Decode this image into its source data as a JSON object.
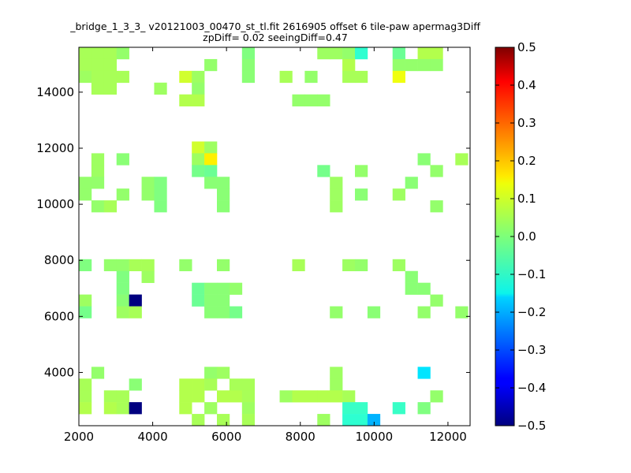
{
  "chart_data": {
    "type": "heatmap",
    "title_lines": [
      "_bridge_1_3_3_ v20121003_00470_st_tl.fit 2616905 offset 6 tile-paw apermag3Diff",
      "zpDiff= 0.02 seeingDiff=0.47"
    ],
    "xlabel": "",
    "ylabel": "",
    "xlim": [
      2000,
      12600
    ],
    "ylim": [
      2100,
      15600
    ],
    "xticks": [
      2000,
      4000,
      6000,
      8000,
      10000,
      12000
    ],
    "yticks": [
      4000,
      6000,
      8000,
      10000,
      12000,
      14000
    ],
    "cell_width": 340,
    "cell_height": 420,
    "colorbar": {
      "colormap": "jet",
      "range": [
        -0.5,
        0.5
      ],
      "ticks": [
        "0.5",
        "0.4",
        "0.3",
        "0.2",
        "0.1",
        "0.0",
        "−0.1",
        "−0.2",
        "−0.3",
        "−0.4",
        "−0.5"
      ]
    },
    "grid": false,
    "cells": [
      {
        "x": 2170,
        "y": 15390,
        "v": 0.04
      },
      {
        "x": 2510,
        "y": 15390,
        "v": 0.04
      },
      {
        "x": 2850,
        "y": 15390,
        "v": 0.04
      },
      {
        "x": 3190,
        "y": 15390,
        "v": 0.02
      },
      {
        "x": 6590,
        "y": 15390,
        "v": 0.0
      },
      {
        "x": 8630,
        "y": 15390,
        "v": 0.03
      },
      {
        "x": 8970,
        "y": 15390,
        "v": 0.03
      },
      {
        "x": 9310,
        "y": 15390,
        "v": 0.02
      },
      {
        "x": 9650,
        "y": 15390,
        "v": -0.08
      },
      {
        "x": 10670,
        "y": 15390,
        "v": -0.02
      },
      {
        "x": 11350,
        "y": 15390,
        "v": 0.05
      },
      {
        "x": 11690,
        "y": 15390,
        "v": 0.05
      },
      {
        "x": 2170,
        "y": 14970,
        "v": 0.04
      },
      {
        "x": 2510,
        "y": 14970,
        "v": 0.04
      },
      {
        "x": 2850,
        "y": 14970,
        "v": 0.04
      },
      {
        "x": 5570,
        "y": 14970,
        "v": 0.02
      },
      {
        "x": 6590,
        "y": 14970,
        "v": 0.01
      },
      {
        "x": 9310,
        "y": 14970,
        "v": 0.05
      },
      {
        "x": 10670,
        "y": 14970,
        "v": 0.02
      },
      {
        "x": 11010,
        "y": 14970,
        "v": 0.02
      },
      {
        "x": 11350,
        "y": 14970,
        "v": 0.02
      },
      {
        "x": 11690,
        "y": 14970,
        "v": 0.02
      },
      {
        "x": 2170,
        "y": 14550,
        "v": 0.03
      },
      {
        "x": 2510,
        "y": 14550,
        "v": 0.04
      },
      {
        "x": 2850,
        "y": 14550,
        "v": 0.04
      },
      {
        "x": 3190,
        "y": 14550,
        "v": 0.04
      },
      {
        "x": 4890,
        "y": 14550,
        "v": 0.08
      },
      {
        "x": 5230,
        "y": 14550,
        "v": 0.03
      },
      {
        "x": 6590,
        "y": 14550,
        "v": 0.01
      },
      {
        "x": 7610,
        "y": 14550,
        "v": 0.04
      },
      {
        "x": 8290,
        "y": 14550,
        "v": 0.02
      },
      {
        "x": 9310,
        "y": 14550,
        "v": 0.04
      },
      {
        "x": 9650,
        "y": 14550,
        "v": 0.04
      },
      {
        "x": 10670,
        "y": 14550,
        "v": 0.11
      },
      {
        "x": 2510,
        "y": 14130,
        "v": 0.04
      },
      {
        "x": 2850,
        "y": 14130,
        "v": 0.04
      },
      {
        "x": 4210,
        "y": 14130,
        "v": 0.03
      },
      {
        "x": 5230,
        "y": 14130,
        "v": 0.02
      },
      {
        "x": 4890,
        "y": 13710,
        "v": 0.05
      },
      {
        "x": 5230,
        "y": 13710,
        "v": 0.05
      },
      {
        "x": 7950,
        "y": 13710,
        "v": 0.02
      },
      {
        "x": 8290,
        "y": 13710,
        "v": 0.02
      },
      {
        "x": 8630,
        "y": 13710,
        "v": 0.02
      },
      {
        "x": 5230,
        "y": 12030,
        "v": 0.08
      },
      {
        "x": 5570,
        "y": 12030,
        "v": 0.03
      },
      {
        "x": 2510,
        "y": 11610,
        "v": 0.03
      },
      {
        "x": 3190,
        "y": 11610,
        "v": 0.01
      },
      {
        "x": 5230,
        "y": 11610,
        "v": 0.03
      },
      {
        "x": 5570,
        "y": 11610,
        "v": 0.14
      },
      {
        "x": 11350,
        "y": 11610,
        "v": 0.01
      },
      {
        "x": 12370,
        "y": 11610,
        "v": 0.04
      },
      {
        "x": 2510,
        "y": 11190,
        "v": 0.03
      },
      {
        "x": 5230,
        "y": 11190,
        "v": -0.01
      },
      {
        "x": 5570,
        "y": 11190,
        "v": -0.02
      },
      {
        "x": 8630,
        "y": 11190,
        "v": -0.01
      },
      {
        "x": 9650,
        "y": 11190,
        "v": 0.02
      },
      {
        "x": 11690,
        "y": 11190,
        "v": 0.02
      },
      {
        "x": 2170,
        "y": 10770,
        "v": 0.02
      },
      {
        "x": 2510,
        "y": 10770,
        "v": 0.02
      },
      {
        "x": 3870,
        "y": 10770,
        "v": 0.02
      },
      {
        "x": 4210,
        "y": 10770,
        "v": 0.0
      },
      {
        "x": 5570,
        "y": 10770,
        "v": 0.01
      },
      {
        "x": 5910,
        "y": 10770,
        "v": 0.01
      },
      {
        "x": 8970,
        "y": 10770,
        "v": 0.03
      },
      {
        "x": 11010,
        "y": 10770,
        "v": 0.01
      },
      {
        "x": 2170,
        "y": 10350,
        "v": 0.02
      },
      {
        "x": 3190,
        "y": 10350,
        "v": 0.02
      },
      {
        "x": 3870,
        "y": 10350,
        "v": 0.02
      },
      {
        "x": 4210,
        "y": 10350,
        "v": 0.0
      },
      {
        "x": 5910,
        "y": 10350,
        "v": 0.01
      },
      {
        "x": 8970,
        "y": 10350,
        "v": 0.03
      },
      {
        "x": 9650,
        "y": 10350,
        "v": 0.01
      },
      {
        "x": 10670,
        "y": 10350,
        "v": 0.03
      },
      {
        "x": 2510,
        "y": 9930,
        "v": 0.02
      },
      {
        "x": 2850,
        "y": 9930,
        "v": 0.04
      },
      {
        "x": 4210,
        "y": 9930,
        "v": 0.0
      },
      {
        "x": 5910,
        "y": 9930,
        "v": 0.01
      },
      {
        "x": 8970,
        "y": 9930,
        "v": 0.03
      },
      {
        "x": 11690,
        "y": 9930,
        "v": 0.02
      },
      {
        "x": 2170,
        "y": 7830,
        "v": 0.0
      },
      {
        "x": 2850,
        "y": 7830,
        "v": 0.02
      },
      {
        "x": 3190,
        "y": 7830,
        "v": 0.02
      },
      {
        "x": 3530,
        "y": 7830,
        "v": 0.04
      },
      {
        "x": 3870,
        "y": 7830,
        "v": 0.04
      },
      {
        "x": 4890,
        "y": 7830,
        "v": 0.02
      },
      {
        "x": 5910,
        "y": 7830,
        "v": 0.02
      },
      {
        "x": 7950,
        "y": 7830,
        "v": 0.04
      },
      {
        "x": 9310,
        "y": 7830,
        "v": 0.03
      },
      {
        "x": 9650,
        "y": 7830,
        "v": 0.02
      },
      {
        "x": 10670,
        "y": 7830,
        "v": 0.03
      },
      {
        "x": 3190,
        "y": 7410,
        "v": 0.0
      },
      {
        "x": 3870,
        "y": 7410,
        "v": 0.03
      },
      {
        "x": 11010,
        "y": 7410,
        "v": 0.01
      },
      {
        "x": 3190,
        "y": 6990,
        "v": 0.0
      },
      {
        "x": 5230,
        "y": 6990,
        "v": -0.02
      },
      {
        "x": 5570,
        "y": 6990,
        "v": 0.01
      },
      {
        "x": 5910,
        "y": 6990,
        "v": 0.01
      },
      {
        "x": 6250,
        "y": 6990,
        "v": 0.02
      },
      {
        "x": 11010,
        "y": 6990,
        "v": 0.01
      },
      {
        "x": 11350,
        "y": 6990,
        "v": 0.01
      },
      {
        "x": 2170,
        "y": 6570,
        "v": 0.03
      },
      {
        "x": 3190,
        "y": 6570,
        "v": 0.01
      },
      {
        "x": 3530,
        "y": 6570,
        "v": -0.5
      },
      {
        "x": 5230,
        "y": 6570,
        "v": -0.02
      },
      {
        "x": 5570,
        "y": 6570,
        "v": 0.01
      },
      {
        "x": 5910,
        "y": 6570,
        "v": 0.01
      },
      {
        "x": 11690,
        "y": 6570,
        "v": 0.02
      },
      {
        "x": 2170,
        "y": 6150,
        "v": -0.01
      },
      {
        "x": 3190,
        "y": 6150,
        "v": 0.03
      },
      {
        "x": 3530,
        "y": 6150,
        "v": 0.04
      },
      {
        "x": 5570,
        "y": 6150,
        "v": 0.01
      },
      {
        "x": 5910,
        "y": 6150,
        "v": 0.01
      },
      {
        "x": 6250,
        "y": 6150,
        "v": -0.01
      },
      {
        "x": 8970,
        "y": 6150,
        "v": 0.02
      },
      {
        "x": 9990,
        "y": 6150,
        "v": 0.01
      },
      {
        "x": 11350,
        "y": 6150,
        "v": 0.02
      },
      {
        "x": 12370,
        "y": 6150,
        "v": 0.02
      },
      {
        "x": 2510,
        "y": 3990,
        "v": 0.02
      },
      {
        "x": 5570,
        "y": 3990,
        "v": 0.02
      },
      {
        "x": 5910,
        "y": 3990,
        "v": 0.03
      },
      {
        "x": 8970,
        "y": 3990,
        "v": 0.03
      },
      {
        "x": 11350,
        "y": 3990,
        "v": -0.15
      },
      {
        "x": 2170,
        "y": 3570,
        "v": 0.04
      },
      {
        "x": 3530,
        "y": 3570,
        "v": 0.01
      },
      {
        "x": 4890,
        "y": 3570,
        "v": 0.05
      },
      {
        "x": 5230,
        "y": 3570,
        "v": 0.05
      },
      {
        "x": 5570,
        "y": 3570,
        "v": 0.04
      },
      {
        "x": 6250,
        "y": 3570,
        "v": 0.04
      },
      {
        "x": 6590,
        "y": 3570,
        "v": 0.04
      },
      {
        "x": 8970,
        "y": 3570,
        "v": 0.03
      },
      {
        "x": 2170,
        "y": 3150,
        "v": 0.04
      },
      {
        "x": 2850,
        "y": 3150,
        "v": 0.04
      },
      {
        "x": 3190,
        "y": 3150,
        "v": 0.04
      },
      {
        "x": 4890,
        "y": 3150,
        "v": 0.05
      },
      {
        "x": 5230,
        "y": 3150,
        "v": 0.05
      },
      {
        "x": 5910,
        "y": 3150,
        "v": 0.05
      },
      {
        "x": 6250,
        "y": 3150,
        "v": 0.05
      },
      {
        "x": 6590,
        "y": 3150,
        "v": 0.04
      },
      {
        "x": 7610,
        "y": 3150,
        "v": 0.03
      },
      {
        "x": 7950,
        "y": 3150,
        "v": 0.05
      },
      {
        "x": 8290,
        "y": 3150,
        "v": 0.05
      },
      {
        "x": 8630,
        "y": 3150,
        "v": 0.05
      },
      {
        "x": 8970,
        "y": 3150,
        "v": 0.05
      },
      {
        "x": 9310,
        "y": 3150,
        "v": 0.04
      },
      {
        "x": 11690,
        "y": 3150,
        "v": 0.02
      },
      {
        "x": 2170,
        "y": 2730,
        "v": 0.05
      },
      {
        "x": 2850,
        "y": 2730,
        "v": 0.05
      },
      {
        "x": 3190,
        "y": 2730,
        "v": 0.04
      },
      {
        "x": 3530,
        "y": 2730,
        "v": -0.5
      },
      {
        "x": 4890,
        "y": 2730,
        "v": 0.05
      },
      {
        "x": 5570,
        "y": 2730,
        "v": 0.03
      },
      {
        "x": 6590,
        "y": 2730,
        "v": 0.03
      },
      {
        "x": 9310,
        "y": 2730,
        "v": -0.07
      },
      {
        "x": 9650,
        "y": 2730,
        "v": -0.07
      },
      {
        "x": 10670,
        "y": 2730,
        "v": -0.07
      },
      {
        "x": 11350,
        "y": 2730,
        "v": 0.0
      },
      {
        "x": 5230,
        "y": 2310,
        "v": 0.04
      },
      {
        "x": 5910,
        "y": 2310,
        "v": 0.04
      },
      {
        "x": 6590,
        "y": 2310,
        "v": 0.04
      },
      {
        "x": 8630,
        "y": 2310,
        "v": 0.03
      },
      {
        "x": 9310,
        "y": 2310,
        "v": -0.08
      },
      {
        "x": 9650,
        "y": 2310,
        "v": -0.08
      },
      {
        "x": 9990,
        "y": 2310,
        "v": -0.2
      }
    ]
  }
}
